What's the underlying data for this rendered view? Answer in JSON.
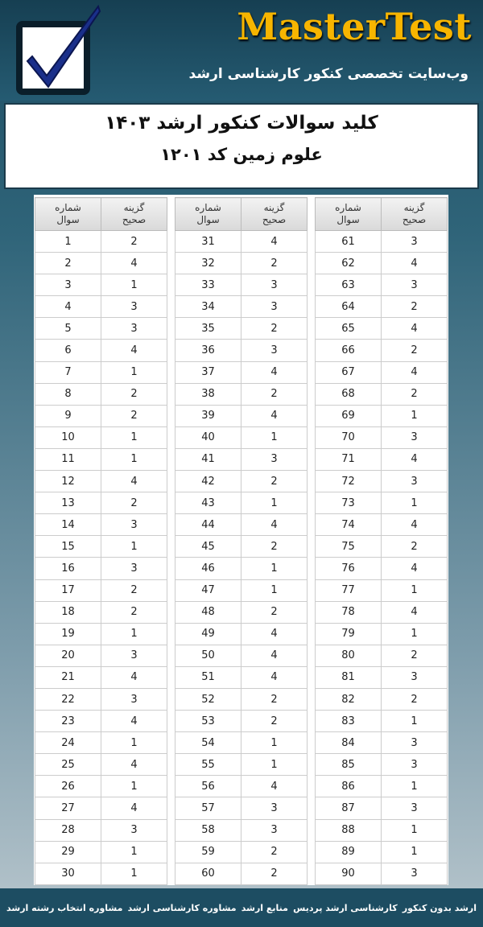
{
  "header": {
    "brand": "MasterTest",
    "tagline": "وب‌سایت تخصصی کنکور کارشناسی ارشد"
  },
  "title_box": {
    "title": "کلید سوالات کنکور ارشد ۱۴۰۳",
    "subtitle": "علوم زمین کد ۱۲۰۱"
  },
  "tables": [
    {
      "headers": [
        "شماره سوال",
        "گزینه صحیح"
      ],
      "rows": [
        [
          1,
          2
        ],
        [
          2,
          4
        ],
        [
          3,
          1
        ],
        [
          4,
          3
        ],
        [
          5,
          3
        ],
        [
          6,
          4
        ],
        [
          7,
          1
        ],
        [
          8,
          2
        ],
        [
          9,
          2
        ],
        [
          10,
          1
        ],
        [
          11,
          1
        ],
        [
          12,
          4
        ],
        [
          13,
          2
        ],
        [
          14,
          3
        ],
        [
          15,
          1
        ],
        [
          16,
          3
        ],
        [
          17,
          2
        ],
        [
          18,
          2
        ],
        [
          19,
          1
        ],
        [
          20,
          3
        ],
        [
          21,
          4
        ],
        [
          22,
          3
        ],
        [
          23,
          4
        ],
        [
          24,
          1
        ],
        [
          25,
          4
        ],
        [
          26,
          1
        ],
        [
          27,
          4
        ],
        [
          28,
          3
        ],
        [
          29,
          1
        ],
        [
          30,
          1
        ]
      ]
    },
    {
      "headers": [
        "شماره سوال",
        "گزینه صحیح"
      ],
      "rows": [
        [
          31,
          4
        ],
        [
          32,
          2
        ],
        [
          33,
          3
        ],
        [
          34,
          3
        ],
        [
          35,
          2
        ],
        [
          36,
          3
        ],
        [
          37,
          4
        ],
        [
          38,
          2
        ],
        [
          39,
          4
        ],
        [
          40,
          1
        ],
        [
          41,
          3
        ],
        [
          42,
          2
        ],
        [
          43,
          1
        ],
        [
          44,
          4
        ],
        [
          45,
          2
        ],
        [
          46,
          1
        ],
        [
          47,
          1
        ],
        [
          48,
          2
        ],
        [
          49,
          4
        ],
        [
          50,
          4
        ],
        [
          51,
          4
        ],
        [
          52,
          2
        ],
        [
          53,
          2
        ],
        [
          54,
          1
        ],
        [
          55,
          1
        ],
        [
          56,
          4
        ],
        [
          57,
          3
        ],
        [
          58,
          3
        ],
        [
          59,
          2
        ],
        [
          60,
          2
        ]
      ]
    },
    {
      "headers": [
        "شماره سوال",
        "گزینه صحیح"
      ],
      "rows": [
        [
          61,
          3
        ],
        [
          62,
          4
        ],
        [
          63,
          3
        ],
        [
          64,
          2
        ],
        [
          65,
          4
        ],
        [
          66,
          2
        ],
        [
          67,
          4
        ],
        [
          68,
          2
        ],
        [
          69,
          1
        ],
        [
          70,
          3
        ],
        [
          71,
          4
        ],
        [
          72,
          3
        ],
        [
          73,
          1
        ],
        [
          74,
          4
        ],
        [
          75,
          2
        ],
        [
          76,
          4
        ],
        [
          77,
          1
        ],
        [
          78,
          4
        ],
        [
          79,
          1
        ],
        [
          80,
          2
        ],
        [
          81,
          3
        ],
        [
          82,
          2
        ],
        [
          83,
          1
        ],
        [
          84,
          3
        ],
        [
          85,
          3
        ],
        [
          86,
          1
        ],
        [
          87,
          3
        ],
        [
          88,
          1
        ],
        [
          89,
          1
        ],
        [
          90,
          3
        ]
      ]
    }
  ],
  "footer": {
    "links": [
      "ارشد بدون کنکور",
      "کارشناسی ارشد پردیس",
      "منابع ارشد",
      "مشاوره کارشناسی ارشد",
      "مشاوره انتخاب رشته ارشد"
    ]
  }
}
